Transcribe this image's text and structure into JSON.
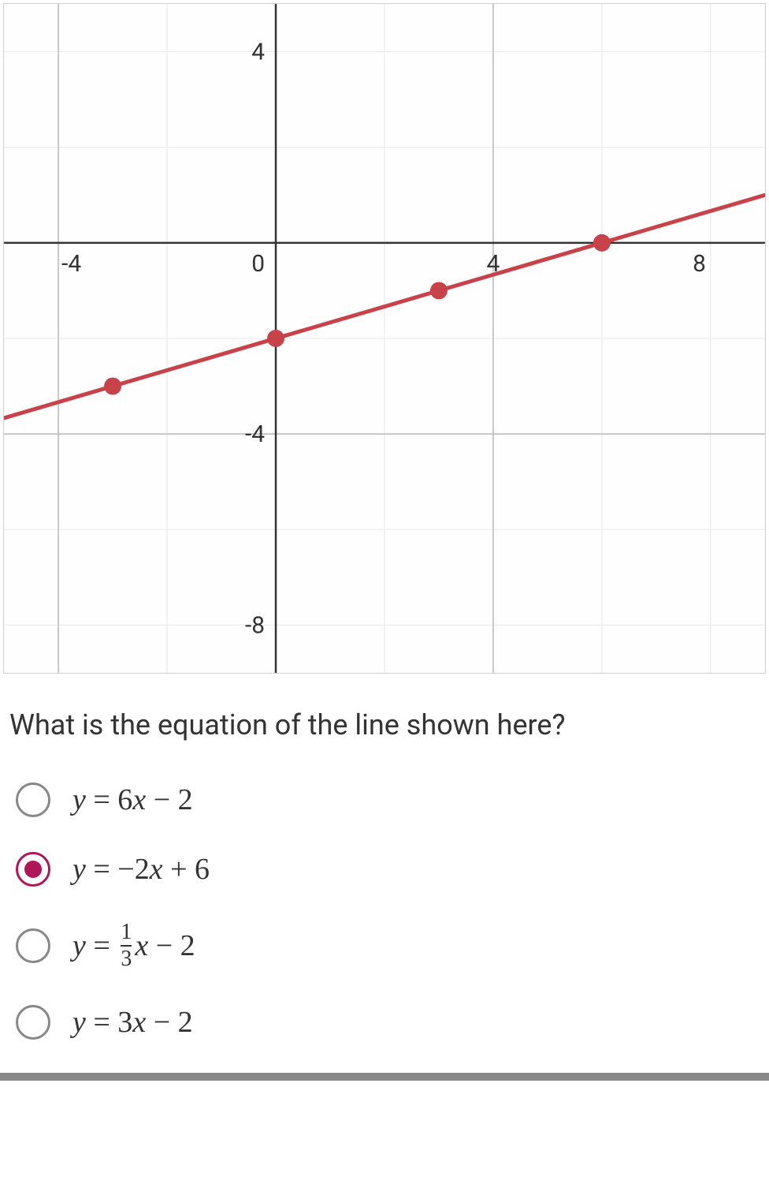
{
  "chart": {
    "type": "line",
    "xlim": [
      -5,
      9
    ],
    "ylim": [
      -9,
      5
    ],
    "x_axis_y": 0,
    "y_axis_x": 0,
    "x_ticks": [
      -4,
      0,
      4,
      8
    ],
    "y_ticks": [
      4,
      0,
      -4,
      -8
    ],
    "x_tick_labels": [
      "-4",
      "0",
      "4",
      "8"
    ],
    "y_tick_labels": [
      "4",
      "0",
      "-4",
      "-8"
    ],
    "grid_step": 2,
    "major_grid_x": [
      -4,
      4
    ],
    "major_grid_y": [
      -4
    ],
    "line_color": "#c84249",
    "line_width": 5,
    "point_color": "#c84249",
    "point_radius": 11,
    "line_points": [
      {
        "x": -5,
        "y": -3.6667
      },
      {
        "x": 9,
        "y": 1
      }
    ],
    "markers": [
      {
        "x": -3,
        "y": -3
      },
      {
        "x": 0,
        "y": -2
      },
      {
        "x": 3,
        "y": -1
      },
      {
        "x": 6,
        "y": 0
      }
    ],
    "background_color": "#fefefe",
    "minor_grid_color": "#e8e8e8",
    "major_grid_color": "#b8b8b8",
    "axis_color": "#333333",
    "axis_width": 2.5,
    "label_fontsize": 30,
    "label_color": "#333333"
  },
  "question": {
    "text": "What is the equation of the line shown here?"
  },
  "options": [
    {
      "id": "opt1",
      "selected": false,
      "latex": "y = 6x − 2"
    },
    {
      "id": "opt2",
      "selected": true,
      "latex": "y = −2x + 6"
    },
    {
      "id": "opt3",
      "selected": false,
      "latex": "y = (1/3)x − 2"
    },
    {
      "id": "opt4",
      "selected": false,
      "latex": "y = 3x − 2"
    }
  ],
  "colors": {
    "selected_radio": "#b01657",
    "unselected_radio": "#888888",
    "text": "#333333"
  }
}
